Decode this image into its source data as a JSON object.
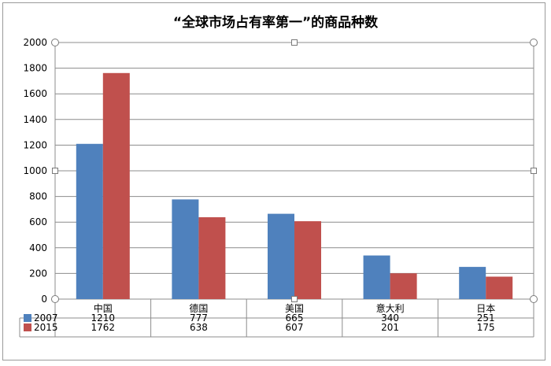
{
  "chart_data": {
    "type": "bar",
    "title": "“全球市场占有率第一”的商品种数",
    "categories": [
      "中国",
      "德国",
      "美国",
      "意大利",
      "日本"
    ],
    "series": [
      {
        "name": "2007",
        "values": [
          1210,
          777,
          665,
          340,
          251
        ],
        "color": "#4f81bd"
      },
      {
        "name": "2015",
        "values": [
          1762,
          638,
          607,
          201,
          175
        ],
        "color": "#c0504d"
      }
    ],
    "ylim": [
      0,
      2000
    ],
    "yticks": [
      0,
      200,
      400,
      600,
      800,
      1000,
      1200,
      1400,
      1600,
      1800,
      2000
    ],
    "grid": true,
    "legend": "data-table",
    "data_table": true
  }
}
